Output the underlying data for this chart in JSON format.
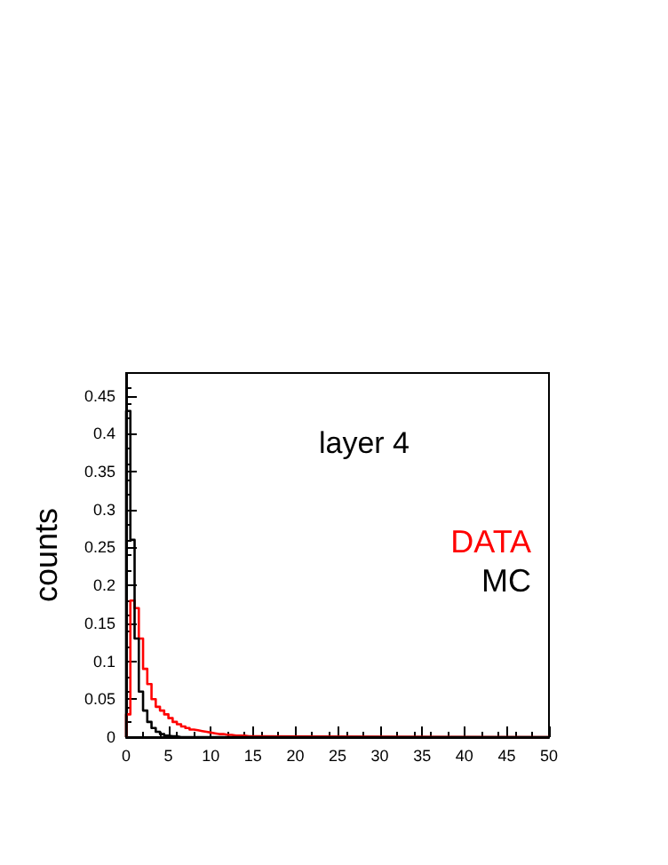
{
  "chart_data": {
    "type": "histogram",
    "title": "layer 4",
    "ylabel": "counts",
    "bins": [
      0,
      0.5,
      1,
      1.5,
      2,
      2.5,
      3,
      3.5,
      4,
      4.5,
      5,
      5.5,
      6,
      6.5,
      7,
      7.5,
      8,
      8.5,
      9,
      9.5,
      10,
      10.5,
      11,
      11.5,
      12,
      12.5,
      13,
      13.5,
      14,
      14.5,
      15,
      50
    ],
    "series": [
      {
        "name": "DATA",
        "color": "#ff0000",
        "values": [
          0.03,
          0.18,
          0.17,
          0.13,
          0.09,
          0.07,
          0.05,
          0.04,
          0.035,
          0.03,
          0.025,
          0.02,
          0.017,
          0.014,
          0.012,
          0.01,
          0.009,
          0.008,
          0.007,
          0.006,
          0.005,
          0.004,
          0.004,
          0.003,
          0.003,
          0.002,
          0.002,
          0.002,
          0.001,
          0.001,
          0
        ]
      },
      {
        "name": "MC",
        "color": "#000000",
        "values": [
          0.43,
          0.26,
          0.13,
          0.06,
          0.035,
          0.02,
          0.012,
          0.007,
          0.004,
          0.002,
          0.001,
          0.001,
          0,
          0,
          0,
          0,
          0,
          0,
          0,
          0,
          0,
          0,
          0,
          0,
          0,
          0,
          0,
          0,
          0,
          0,
          0
        ]
      }
    ],
    "xlim": [
      0,
      50
    ],
    "xticks": [
      0,
      5,
      10,
      15,
      20,
      25,
      30,
      35,
      40,
      45,
      50
    ],
    "ylim": [
      0,
      0.48
    ],
    "yticks": [
      0,
      0.05,
      0.1,
      0.15,
      0.2,
      0.25,
      0.3,
      0.35,
      0.4,
      0.45
    ],
    "legend": "right"
  }
}
